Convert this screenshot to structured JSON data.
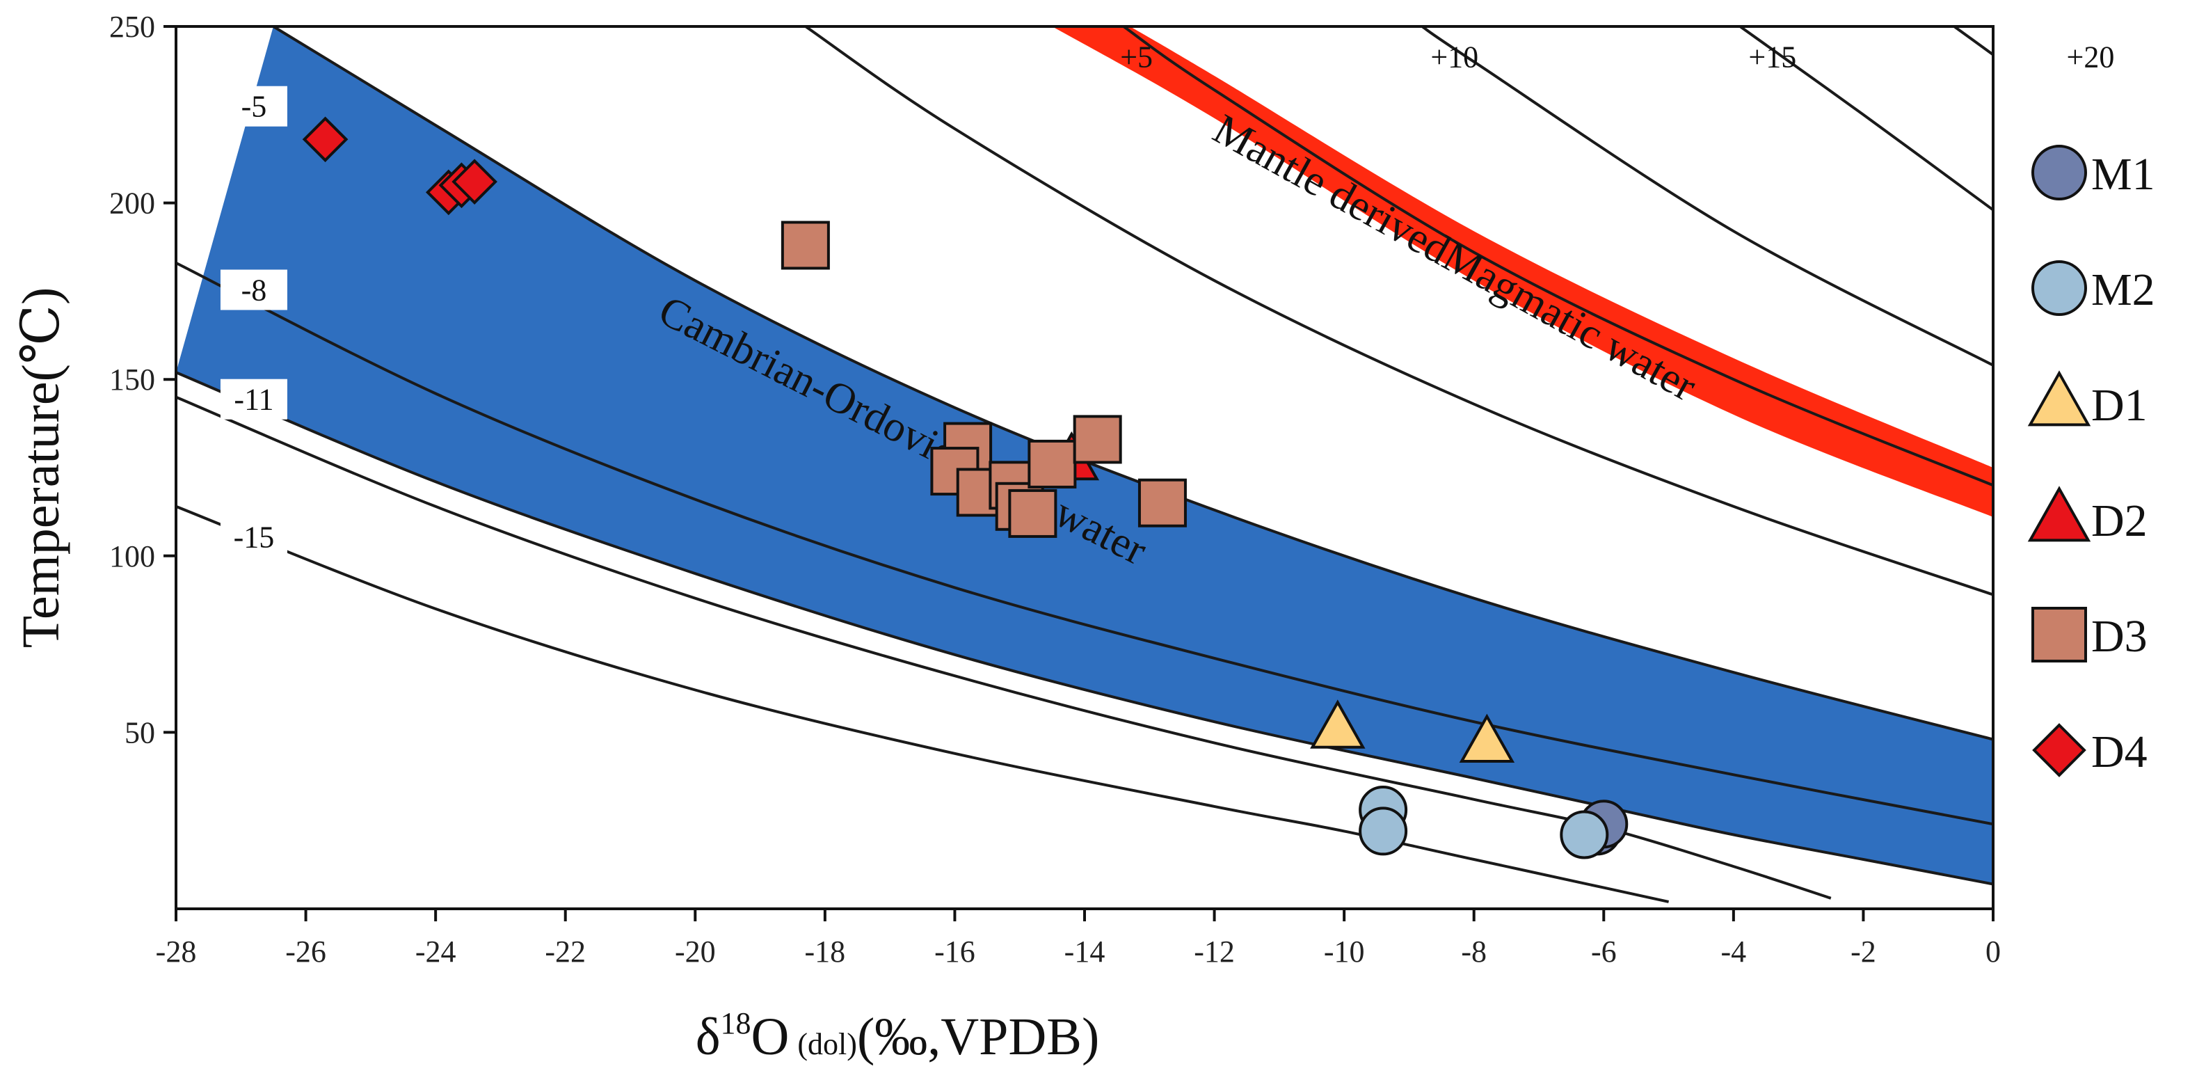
{
  "chart_data": {
    "type": "scatter",
    "xlabel": "δ18O (dol)(‰,VPDB)",
    "xlabel_parts": {
      "delta": "δ",
      "sup": "18",
      "o": "O",
      "sub": "(dol)",
      "rest": "(‰,VPDB)"
    },
    "ylabel": "Temperature(℃)",
    "xlim": [
      -28,
      0
    ],
    "ylim": [
      0,
      250
    ],
    "x_ticks": [
      -28,
      -26,
      -24,
      -22,
      -20,
      -18,
      -16,
      -14,
      -12,
      -10,
      -8,
      -6,
      -4,
      -2,
      0
    ],
    "x_tick_labels": [
      "-28",
      "-26",
      "-24",
      "-22",
      "-20",
      "-18",
      "-16",
      "-14",
      "-12",
      "-10",
      "-8",
      "-6",
      "-4",
      "-2",
      "0"
    ],
    "y_ticks": [
      50,
      100,
      150,
      200,
      250
    ],
    "y_tick_labels": [
      "50",
      "100",
      "150",
      "200",
      "250"
    ],
    "grid": false,
    "legend_position": "right",
    "isolines": [
      {
        "label": "-15",
        "points": [
          [
            -28,
            114
          ],
          [
            -24,
            85
          ],
          [
            -20,
            62
          ],
          [
            -16,
            44
          ],
          [
            -12,
            29
          ],
          [
            -10,
            22
          ],
          [
            -8,
            14
          ],
          [
            -6,
            6
          ],
          [
            -5,
            2
          ]
        ]
      },
      {
        "label": "-11",
        "points": [
          [
            -28,
            145
          ],
          [
            -24,
            114
          ],
          [
            -20,
            88
          ],
          [
            -16,
            66
          ],
          [
            -12,
            47
          ],
          [
            -8,
            31
          ],
          [
            -6,
            23
          ],
          [
            -4,
            12
          ],
          [
            -2.5,
            3
          ]
        ]
      },
      {
        "label": "",
        "points": [
          [
            -28,
            152
          ],
          [
            -24,
            121
          ],
          [
            -20,
            95
          ],
          [
            -16,
            72
          ],
          [
            -12,
            53
          ],
          [
            -8,
            37
          ],
          [
            -6,
            29
          ],
          [
            -4,
            21
          ],
          [
            -2,
            14
          ],
          [
            0,
            7
          ]
        ]
      },
      {
        "label": "-8",
        "points": [
          [
            -28,
            183
          ],
          [
            -24,
            146
          ],
          [
            -20,
            116
          ],
          [
            -16,
            91
          ],
          [
            -12,
            71
          ],
          [
            -8,
            53
          ],
          [
            -4,
            38
          ],
          [
            0,
            24
          ]
        ]
      },
      {
        "label": "-5",
        "points": [
          [
            -26.5,
            250
          ],
          [
            -24,
            222
          ],
          [
            -20,
            178
          ],
          [
            -16,
            142
          ],
          [
            -12,
            113
          ],
          [
            -8,
            88
          ],
          [
            -4,
            67
          ],
          [
            0,
            48
          ]
        ]
      },
      {
        "label": "",
        "points": [
          [
            -18.3,
            250
          ],
          [
            -16,
            221
          ],
          [
            -12,
            178
          ],
          [
            -8,
            143
          ],
          [
            -4,
            114
          ],
          [
            0,
            89
          ]
        ]
      },
      {
        "label": "+5",
        "points": [
          [
            -13.4,
            250
          ],
          [
            -12,
            232
          ],
          [
            -8,
            186
          ],
          [
            -4,
            150
          ],
          [
            0,
            120
          ]
        ]
      },
      {
        "label": "+10",
        "points": [
          [
            -8.8,
            250
          ],
          [
            -8,
            240
          ],
          [
            -4,
            192
          ],
          [
            0,
            154
          ]
        ]
      },
      {
        "label": "+15",
        "points": [
          [
            -3.9,
            250
          ],
          [
            -2,
            225
          ],
          [
            0,
            198
          ]
        ]
      },
      {
        "label": "+20",
        "points": [
          [
            -0.6,
            250
          ],
          [
            0,
            242
          ]
        ]
      }
    ],
    "regions": [
      {
        "name": "Cambrian-Ordovician seawater",
        "color": "#2f6fbf",
        "upper": [
          [
            -26.5,
            250
          ],
          [
            -24,
            222
          ],
          [
            -20,
            178
          ],
          [
            -16,
            142
          ],
          [
            -12,
            113
          ],
          [
            -8,
            88
          ],
          [
            -4,
            67
          ],
          [
            0,
            48
          ]
        ],
        "lower": [
          [
            -28,
            152
          ],
          [
            -24,
            121
          ],
          [
            -20,
            95
          ],
          [
            -16,
            72
          ],
          [
            -12,
            53
          ],
          [
            -8,
            37
          ],
          [
            -6,
            29
          ],
          [
            -4,
            21
          ],
          [
            -2,
            14
          ],
          [
            0,
            7
          ]
        ]
      },
      {
        "name": "Mantle derivedMagmatic water",
        "color": "#ff2a10",
        "upper": [
          [
            -14.5,
            250
          ],
          [
            -12,
            224
          ],
          [
            -8,
            178
          ],
          [
            -4,
            140
          ],
          [
            0,
            111
          ]
        ],
        "lower": [
          [
            -13.3,
            250
          ],
          [
            -12,
            236
          ],
          [
            -8,
            192
          ],
          [
            -4,
            156
          ],
          [
            0,
            125
          ]
        ]
      }
    ],
    "series": [
      {
        "name": "M1",
        "marker": "circle",
        "color": "#6f7fab",
        "points": [
          [
            -6.1,
            22
          ],
          [
            -6.0,
            24
          ]
        ]
      },
      {
        "name": "M2",
        "marker": "circle",
        "color": "#9dbed6",
        "points": [
          [
            -9.4,
            28
          ],
          [
            -9.4,
            22
          ],
          [
            -6.3,
            21
          ]
        ]
      },
      {
        "name": "D1",
        "marker": "triangle",
        "color": "#fdd27f",
        "points": [
          [
            -10.1,
            51
          ],
          [
            -7.8,
            47
          ]
        ]
      },
      {
        "name": "D2",
        "marker": "triangle",
        "color": "#e8141b",
        "points": [
          [
            -14.2,
            127
          ]
        ]
      },
      {
        "name": "D3",
        "marker": "square",
        "color": "#c98069",
        "points": [
          [
            -18.3,
            188
          ],
          [
            -15.8,
            131
          ],
          [
            -16.0,
            124
          ],
          [
            -15.6,
            118
          ],
          [
            -15.1,
            120
          ],
          [
            -15.0,
            114
          ],
          [
            -14.8,
            112
          ],
          [
            -14.5,
            126
          ],
          [
            -13.8,
            133
          ],
          [
            -12.8,
            115
          ]
        ]
      },
      {
        "name": "D4",
        "marker": "diamond",
        "color": "#e8141b",
        "points": [
          [
            -25.7,
            218
          ],
          [
            -23.8,
            203
          ],
          [
            -23.6,
            205
          ],
          [
            -23.4,
            206
          ]
        ]
      }
    ]
  }
}
